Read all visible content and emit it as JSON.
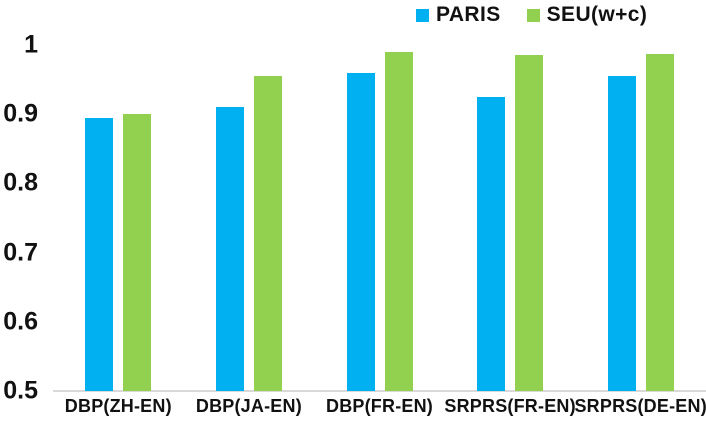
{
  "chart_data": {
    "type": "bar",
    "title": "",
    "xlabel": "",
    "ylabel": "",
    "categories": [
      "DBP(ZH-EN)",
      "DBP(JA-EN)",
      "DBP(FR-EN)",
      "SRPRS(FR-EN)",
      "SRPRS(DE-EN)"
    ],
    "series": [
      {
        "name": "PARIS",
        "color": "#00B0F0",
        "values": [
          0.895,
          0.91,
          0.96,
          0.925,
          0.955
        ]
      },
      {
        "name": "SEU(w+c)",
        "color": "#92D050",
        "values": [
          0.9,
          0.955,
          0.99,
          0.985,
          0.987
        ]
      }
    ],
    "ylim": [
      0.5,
      1
    ],
    "yticks": [
      1,
      0.9,
      0.8,
      0.7,
      0.6,
      0.5
    ],
    "ytick_labels": [
      "1",
      "0.9",
      "0.8",
      "0.7",
      "0.6",
      "0.5"
    ],
    "grid": false,
    "legend_position": "top-right"
  },
  "colors": {
    "background": "#FFFFFF",
    "axis_line": "#D9D9D9",
    "text": "#111111",
    "paris": "#00B0F0",
    "seu": "#92D050"
  }
}
